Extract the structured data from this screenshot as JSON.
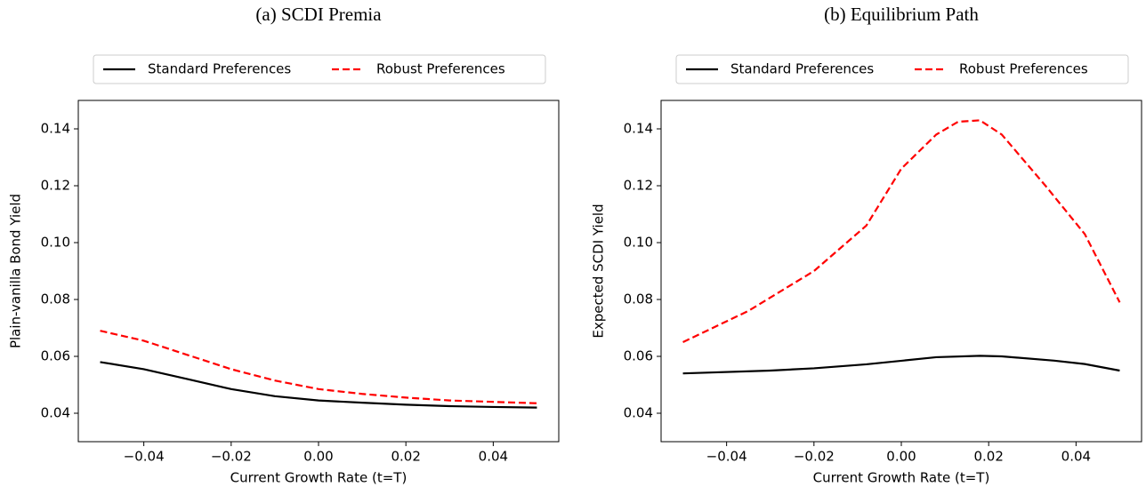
{
  "chart_data": [
    {
      "type": "line",
      "title": "(a) SCDI Premia",
      "xlabel": "Current Growth Rate (t=T)",
      "ylabel": "Plain-vanilla Bond Yield",
      "xlim": [
        -0.055,
        0.055
      ],
      "ylim": [
        0.03,
        0.15
      ],
      "xticks": [
        {
          "value": -0.04,
          "label": "−0.04"
        },
        {
          "value": -0.02,
          "label": "−0.02"
        },
        {
          "value": 0,
          "label": "0.00"
        },
        0.02,
        0.04
      ],
      "yticks": [
        0.04,
        0.06,
        0.08,
        {
          "value": 0.1,
          "label": "0.10"
        },
        0.12,
        0.14
      ],
      "legend": "top",
      "series": [
        {
          "name": "Standard Preferences",
          "color": "#000000",
          "dash": "solid",
          "x": [
            -0.05,
            -0.04,
            -0.03,
            -0.02,
            -0.01,
            0,
            0.01,
            0.02,
            0.03,
            0.04,
            0.05
          ],
          "values": [
            0.058,
            0.0555,
            0.052,
            0.0485,
            0.046,
            0.0445,
            0.0437,
            0.043,
            0.0425,
            0.0422,
            0.042
          ]
        },
        {
          "name": "Robust Preferences",
          "color": "#ff0000",
          "dash": "dashed",
          "x": [
            -0.05,
            -0.04,
            -0.03,
            -0.02,
            -0.01,
            0,
            0.01,
            0.02,
            0.03,
            0.04,
            0.05
          ],
          "values": [
            0.069,
            0.0655,
            0.0605,
            0.0555,
            0.0515,
            0.0485,
            0.0468,
            0.0455,
            0.0445,
            0.044,
            0.0435
          ]
        }
      ]
    },
    {
      "type": "line",
      "title": "(b) Equilibrium Path",
      "xlabel": "Current Growth Rate (t=T)",
      "ylabel": "Expected SCDI Yield",
      "xlim": [
        -0.055,
        0.055
      ],
      "ylim": [
        0.03,
        0.15
      ],
      "xticks": [
        {
          "value": -0.04,
          "label": "−0.04"
        },
        {
          "value": -0.02,
          "label": "−0.02"
        },
        {
          "value": 0,
          "label": "0.00"
        },
        0.02,
        0.04
      ],
      "yticks": [
        0.04,
        0.06,
        0.08,
        {
          "value": 0.1,
          "label": "0.10"
        },
        0.12,
        0.14
      ],
      "legend": "top",
      "series": [
        {
          "name": "Standard Preferences",
          "color": "#000000",
          "dash": "solid",
          "x": [
            -0.05,
            -0.03,
            -0.02,
            -0.008,
            0.008,
            0.018,
            0.023,
            0.035,
            0.042,
            0.05
          ],
          "values": [
            0.054,
            0.055,
            0.0558,
            0.0572,
            0.0597,
            0.0602,
            0.06,
            0.0585,
            0.0573,
            0.055
          ]
        },
        {
          "name": "Robust Preferences",
          "color": "#ff0000",
          "dash": "dashed",
          "x": [
            -0.05,
            -0.035,
            -0.02,
            -0.008,
            0,
            0.008,
            0.013,
            0.018,
            0.023,
            0.033,
            0.042,
            0.05
          ],
          "values": [
            0.065,
            0.076,
            0.09,
            0.106,
            0.126,
            0.138,
            0.1425,
            0.143,
            0.138,
            0.12,
            0.103,
            0.079
          ]
        }
      ]
    }
  ]
}
